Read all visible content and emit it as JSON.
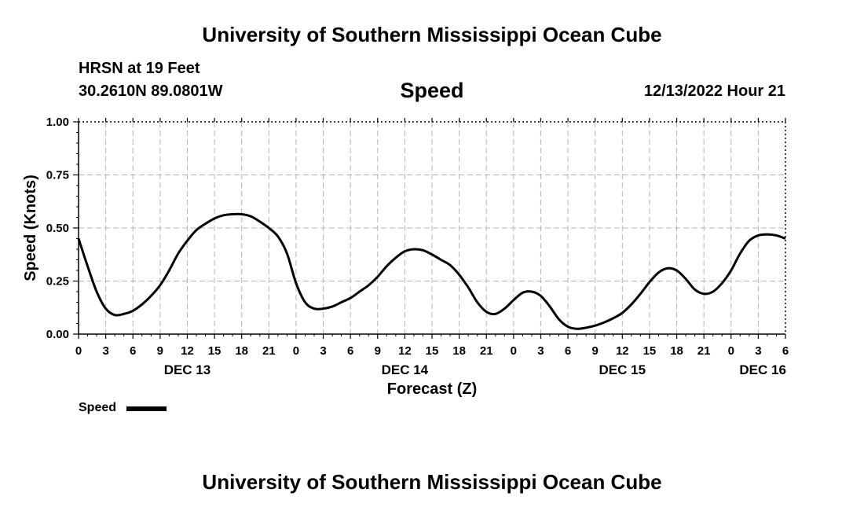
{
  "header": {
    "title": "University of Southern Mississippi Ocean Cube",
    "station": "HRSN at 19 Feet",
    "coordinates": "30.2610N  89.0801W",
    "datetime": "12/13/2022 Hour 21"
  },
  "footer": {
    "title": "University of Southern Mississippi Ocean Cube"
  },
  "legend": {
    "label": "Speed"
  },
  "chart_data": {
    "type": "line",
    "title": "Speed",
    "xlabel": "Forecast (Z)",
    "ylabel": "Speed (Knots)",
    "xlim": [
      0,
      78
    ],
    "ylim": [
      0,
      1
    ],
    "x_tick_values": [
      0,
      3,
      6,
      9,
      12,
      15,
      18,
      21,
      24,
      27,
      30,
      33,
      36,
      39,
      42,
      45,
      48,
      51,
      54,
      57,
      60,
      63,
      66,
      69,
      72,
      75,
      78
    ],
    "x_tick_labels": [
      "0",
      "3",
      "6",
      "9",
      "12",
      "15",
      "18",
      "21",
      "0",
      "3",
      "6",
      "9",
      "12",
      "15",
      "18",
      "21",
      "0",
      "3",
      "6",
      "9",
      "12",
      "15",
      "18",
      "21",
      "0",
      "3",
      "6"
    ],
    "y_tick_values": [
      0,
      0.25,
      0.5,
      0.75,
      1.0
    ],
    "y_tick_labels": [
      "0.00",
      "0.25",
      "0.50",
      "0.75",
      "1.00"
    ],
    "day_labels": [
      {
        "x": 12,
        "label": "DEC 13"
      },
      {
        "x": 36,
        "label": "DEC 14"
      },
      {
        "x": 60,
        "label": "DEC 15"
      },
      {
        "x": 75.5,
        "label": "DEC 16"
      }
    ],
    "grid": true,
    "series": [
      {
        "name": "Speed",
        "color": "#000000",
        "x": [
          0,
          1,
          2,
          3,
          4,
          5,
          6,
          7,
          8,
          9,
          10,
          11,
          12,
          13,
          14,
          15,
          16,
          17,
          18,
          19,
          20,
          21,
          22,
          23,
          24,
          25,
          26,
          27,
          28,
          29,
          30,
          31,
          32,
          33,
          34,
          35,
          36,
          37,
          38,
          39,
          40,
          41,
          42,
          43,
          44,
          45,
          46,
          47,
          48,
          49,
          50,
          51,
          52,
          53,
          54,
          55,
          56,
          57,
          58,
          59,
          60,
          61,
          62,
          63,
          64,
          65,
          66,
          67,
          68,
          69,
          70,
          71,
          72,
          73,
          74,
          75,
          76,
          77,
          78
        ],
        "values": [
          0.45,
          0.32,
          0.2,
          0.12,
          0.09,
          0.095,
          0.11,
          0.14,
          0.18,
          0.23,
          0.3,
          0.38,
          0.44,
          0.49,
          0.52,
          0.545,
          0.56,
          0.565,
          0.565,
          0.555,
          0.53,
          0.5,
          0.46,
          0.38,
          0.24,
          0.15,
          0.12,
          0.12,
          0.13,
          0.15,
          0.17,
          0.2,
          0.23,
          0.27,
          0.32,
          0.36,
          0.39,
          0.4,
          0.395,
          0.375,
          0.35,
          0.325,
          0.28,
          0.22,
          0.15,
          0.105,
          0.095,
          0.12,
          0.16,
          0.195,
          0.2,
          0.18,
          0.13,
          0.07,
          0.035,
          0.025,
          0.03,
          0.04,
          0.055,
          0.075,
          0.1,
          0.14,
          0.19,
          0.245,
          0.29,
          0.31,
          0.3,
          0.26,
          0.21,
          0.19,
          0.2,
          0.24,
          0.3,
          0.38,
          0.44,
          0.465,
          0.47,
          0.465,
          0.45
        ]
      }
    ]
  }
}
